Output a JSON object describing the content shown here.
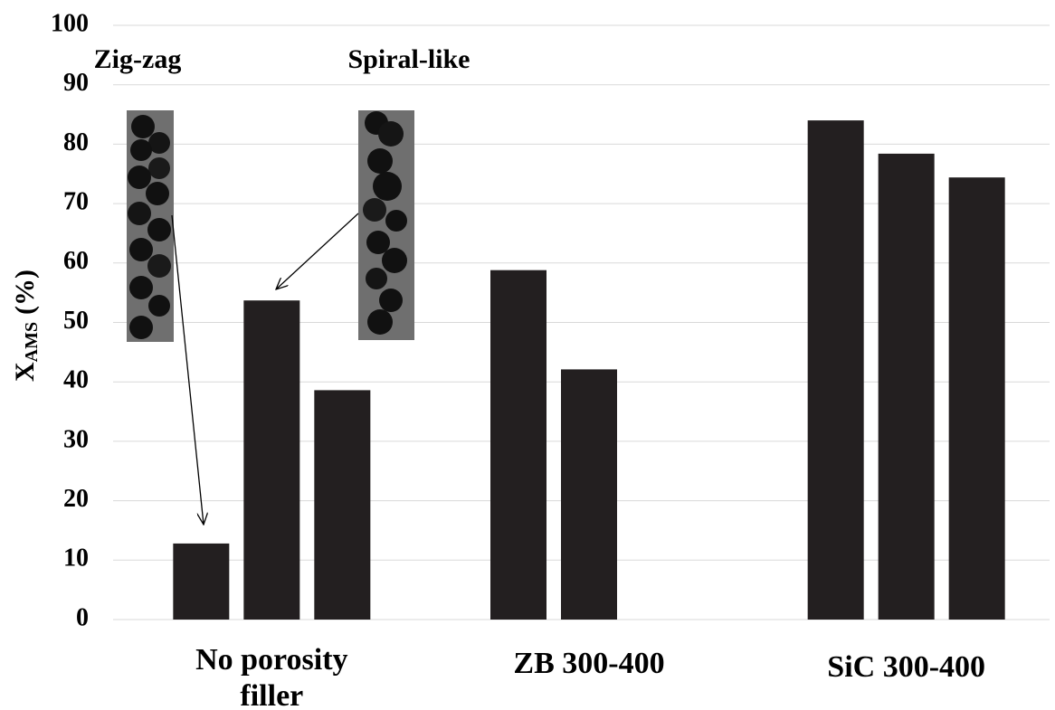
{
  "chart_data": {
    "type": "bar",
    "categories": [
      "No porosity filler",
      "ZB 300-400",
      "SiC 300-400"
    ],
    "series": [
      {
        "color": "#231f20",
        "values": [
          12.8,
          58.8,
          84.0
        ]
      },
      {
        "color": "#231f20",
        "values": [
          53.7,
          42.1,
          78.4
        ]
      },
      {
        "color": "#231f20",
        "values": [
          38.6,
          null,
          74.4
        ]
      }
    ],
    "ylabel_parts": [
      "X",
      "AMS",
      "(%)"
    ],
    "ylim": [
      0,
      100
    ],
    "yticks": [
      0,
      10,
      20,
      30,
      40,
      50,
      60,
      70,
      80,
      90,
      100
    ],
    "grid": true,
    "annotations": [
      "Zig-zag",
      "Spiral-like"
    ]
  }
}
